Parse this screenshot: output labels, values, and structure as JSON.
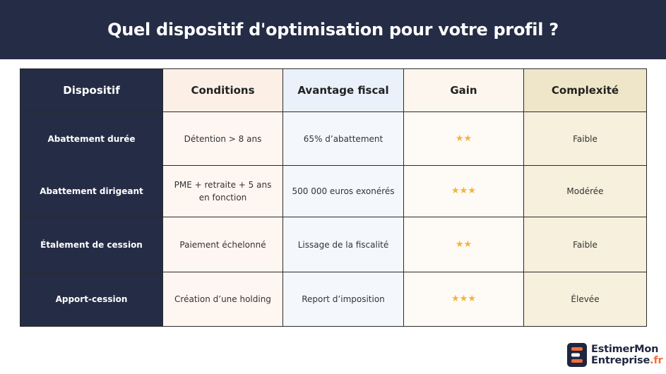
{
  "title": "Quel dispositif d'optimisation pour votre profil ?",
  "table": {
    "headers": [
      "Dispositif",
      "Conditions",
      "Avantage fiscal",
      "Gain",
      "Complexité"
    ],
    "rows": [
      {
        "dispositif": "Abattement durée",
        "conditions": "Détention > 8 ans",
        "avantage": "65% d’abattement",
        "gain": 2,
        "gain_stars": "★★",
        "complexite": "Faible"
      },
      {
        "dispositif": "Abattement dirigeant",
        "conditions": "PME + retraite + 5 ans en fonction",
        "avantage": "500 000 euros exonérés",
        "gain": 3,
        "gain_stars": "★★★",
        "complexite": "Modérée"
      },
      {
        "dispositif": "Étalement de cession",
        "conditions": "Paiement échelonné",
        "avantage": "Lissage de la fiscalité",
        "gain": 2,
        "gain_stars": "★★",
        "complexite": "Faible"
      },
      {
        "dispositif": "Apport-cession",
        "conditions": "Création d’une holding",
        "avantage": "Report d’imposition",
        "gain": 3,
        "gain_stars": "★★★",
        "complexite": "Élevée"
      }
    ]
  },
  "logo": {
    "line1": "EstimerMon",
    "line2": "Entreprise",
    "line2_suffix": ".fr"
  },
  "colors": {
    "banner": "#252c45",
    "star": "#f0b53c",
    "logo_accent": "#f26d3c"
  }
}
